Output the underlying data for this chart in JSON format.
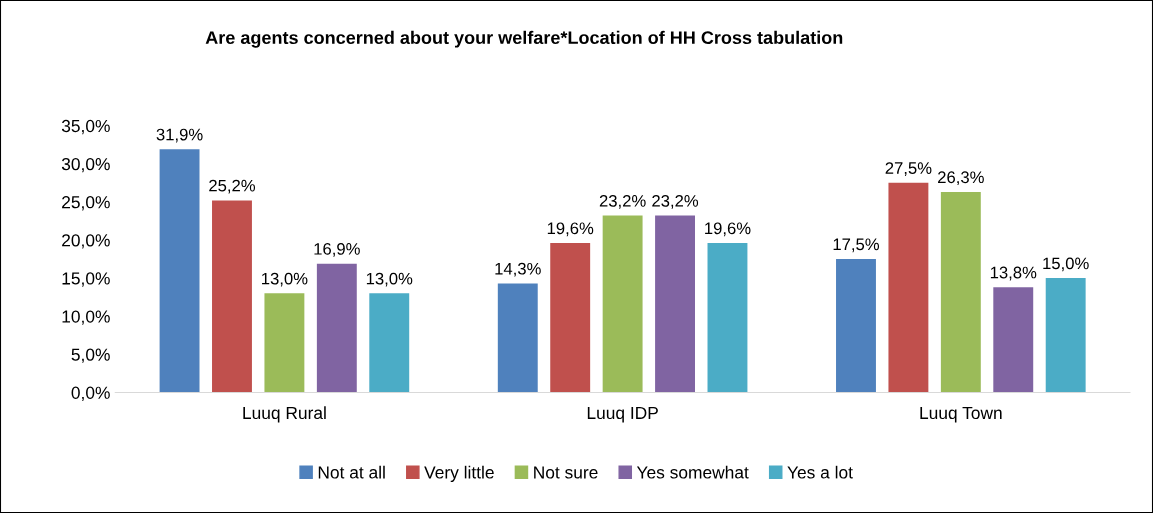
{
  "chart_data": {
    "type": "bar",
    "title": "Are agents concerned about your welfare*Location of HH Cross tabulation",
    "categories": [
      "Luuq Rural",
      "Luuq IDP",
      "Luuq Town"
    ],
    "series": [
      {
        "name": "Not at all",
        "color": "#4f81bd",
        "values": [
          31.9,
          14.3,
          17.5
        ],
        "value_labels": [
          "31,9%",
          "14,3%",
          "17,5%"
        ]
      },
      {
        "name": "Very little",
        "color": "#c0504d",
        "values": [
          25.2,
          19.6,
          27.5
        ],
        "value_labels": [
          "25,2%",
          "19,6%",
          "27,5%"
        ]
      },
      {
        "name": "Not sure",
        "color": "#9bbb59",
        "values": [
          13.0,
          23.2,
          26.3
        ],
        "value_labels": [
          "13,0%",
          "23,2%",
          "26,3%"
        ]
      },
      {
        "name": "Yes somewhat",
        "color": "#8064a2",
        "values": [
          16.9,
          23.2,
          13.8
        ],
        "value_labels": [
          "16,9%",
          "23,2%",
          "13,8%"
        ]
      },
      {
        "name": "Yes a lot",
        "color": "#4bacc6",
        "values": [
          13.0,
          19.6,
          15.0
        ],
        "value_labels": [
          "13,0%",
          "19,6%",
          "15,0%"
        ]
      }
    ],
    "ylim": [
      0,
      35
    ],
    "yticks": [
      {
        "value": 0,
        "label": "0,0%"
      },
      {
        "value": 5,
        "label": "5,0%"
      },
      {
        "value": 10,
        "label": "10,0%"
      },
      {
        "value": 15,
        "label": "15,0%"
      },
      {
        "value": 20,
        "label": "20,0%"
      },
      {
        "value": 25,
        "label": "25,0%"
      },
      {
        "value": 30,
        "label": "30,0%"
      },
      {
        "value": 35,
        "label": "35,0%"
      }
    ],
    "grid": false,
    "legend": "bottom"
  }
}
